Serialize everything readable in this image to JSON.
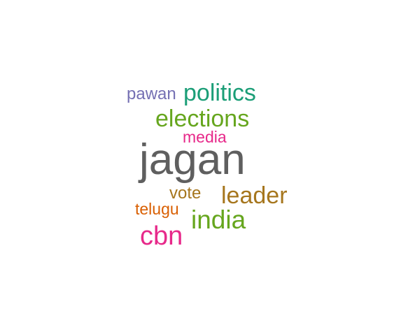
{
  "word_cloud": {
    "words": [
      {
        "text": "jagan",
        "weight": 1.0,
        "color": "#5f5f5f"
      },
      {
        "text": "politics",
        "weight": 0.55,
        "color": "#1b9e77"
      },
      {
        "text": "elections",
        "weight": 0.55,
        "color": "#66a61e"
      },
      {
        "text": "leader",
        "weight": 0.55,
        "color": "#a6761d"
      },
      {
        "text": "india",
        "weight": 0.6,
        "color": "#66a61e"
      },
      {
        "text": "cbn",
        "weight": 0.62,
        "color": "#e7298a"
      },
      {
        "text": "pawan",
        "weight": 0.38,
        "color": "#7570b3"
      },
      {
        "text": "media",
        "weight": 0.37,
        "color": "#e7298a"
      },
      {
        "text": "vote",
        "weight": 0.38,
        "color": "#a6761d"
      },
      {
        "text": "telugu",
        "weight": 0.37,
        "color": "#d95f02"
      }
    ]
  }
}
